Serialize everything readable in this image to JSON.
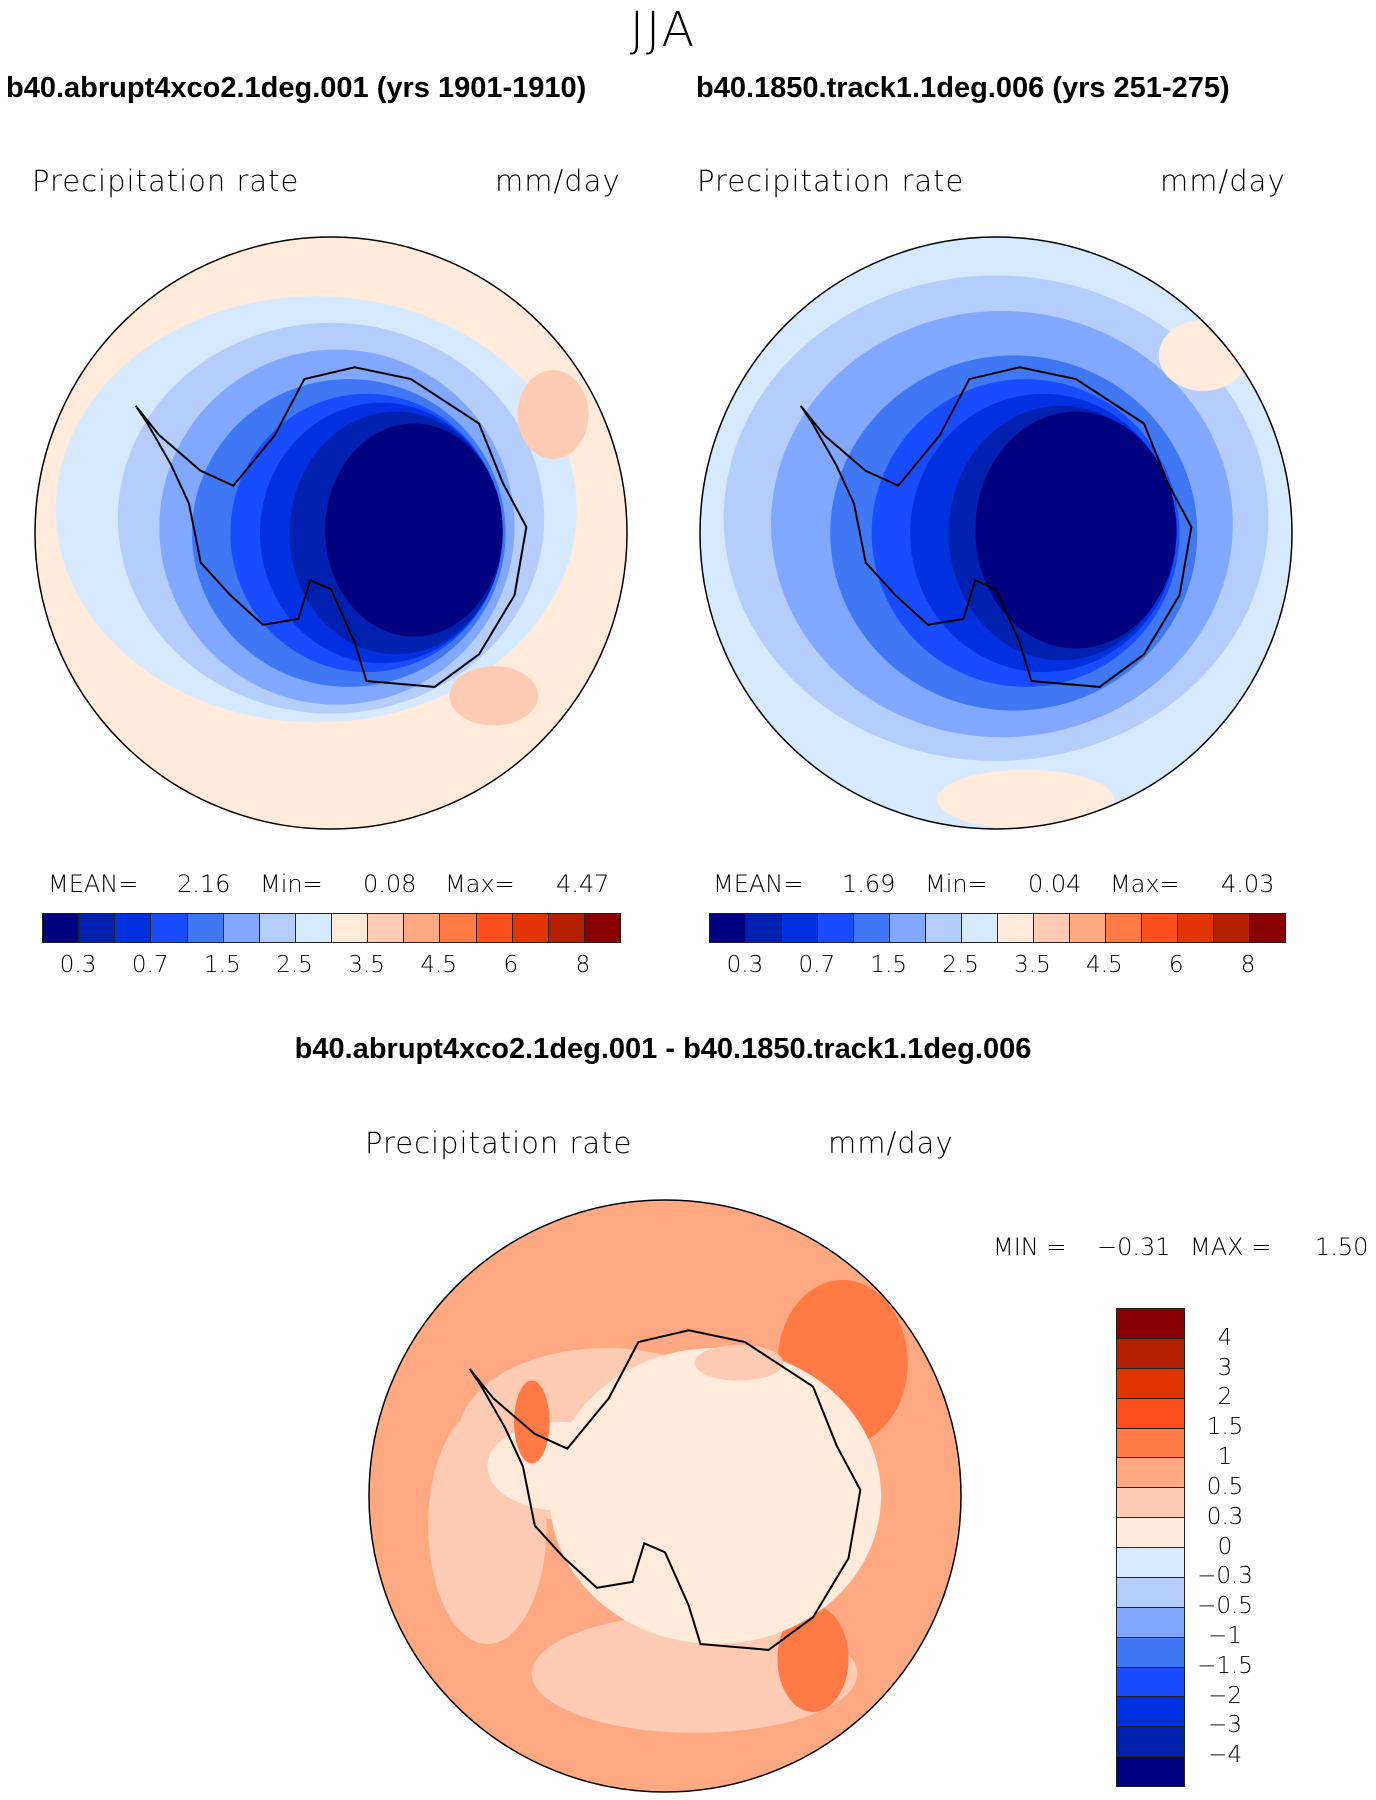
{
  "figure": {
    "season": "JJA",
    "diff_title": "b40.abrupt4xco2.1deg.001 - b40.1850.track1.1deg.006"
  },
  "panels": [
    {
      "title": "b40.abrupt4xco2.1deg.001 (yrs 1901-1910)",
      "variable": "Precipitation rate",
      "units": "mm/day",
      "stats": {
        "mean_label": "MEAN=",
        "mean": "2.16",
        "min_label": "Min=",
        "min": "0.08",
        "max_label": "Max=",
        "max": "4.47"
      }
    },
    {
      "title": "b40.1850.track1.1deg.006 (yrs 251-275)",
      "variable": "Precipitation rate",
      "units": "mm/day",
      "stats": {
        "mean_label": "MEAN=",
        "mean": "1.69",
        "min_label": "Min=",
        "min": "0.04",
        "max_label": "Max=",
        "max": "4.03"
      }
    }
  ],
  "diff_panel": {
    "variable": "Precipitation rate",
    "units": "mm/day",
    "stats": {
      "min_label": "MIN =",
      "min": "−0.31",
      "max_label": "MAX =",
      "max": "1.50"
    }
  },
  "colorbar": {
    "colors": [
      "#000080",
      "#0020b0",
      "#0030e0",
      "#1a4cff",
      "#4077f5",
      "#80a8ff",
      "#b4cdfd",
      "#d7e9ff",
      "#ffeadb",
      "#ffcbb3",
      "#ffa982",
      "#ff7a45",
      "#ff4e1e",
      "#e23400",
      "#b32000",
      "#8a0000"
    ],
    "labels": [
      "0.3",
      "0.7",
      "1.5",
      "2.5",
      "3.5",
      "4.5",
      "6",
      "8"
    ]
  },
  "diff_colorbar": {
    "labels": [
      "4",
      "3",
      "2",
      "1.5",
      "1",
      "0.5",
      "0.3",
      "0",
      "−0.3",
      "−0.5",
      "−1",
      "−1.5",
      "−2",
      "−3",
      "−4"
    ]
  }
}
